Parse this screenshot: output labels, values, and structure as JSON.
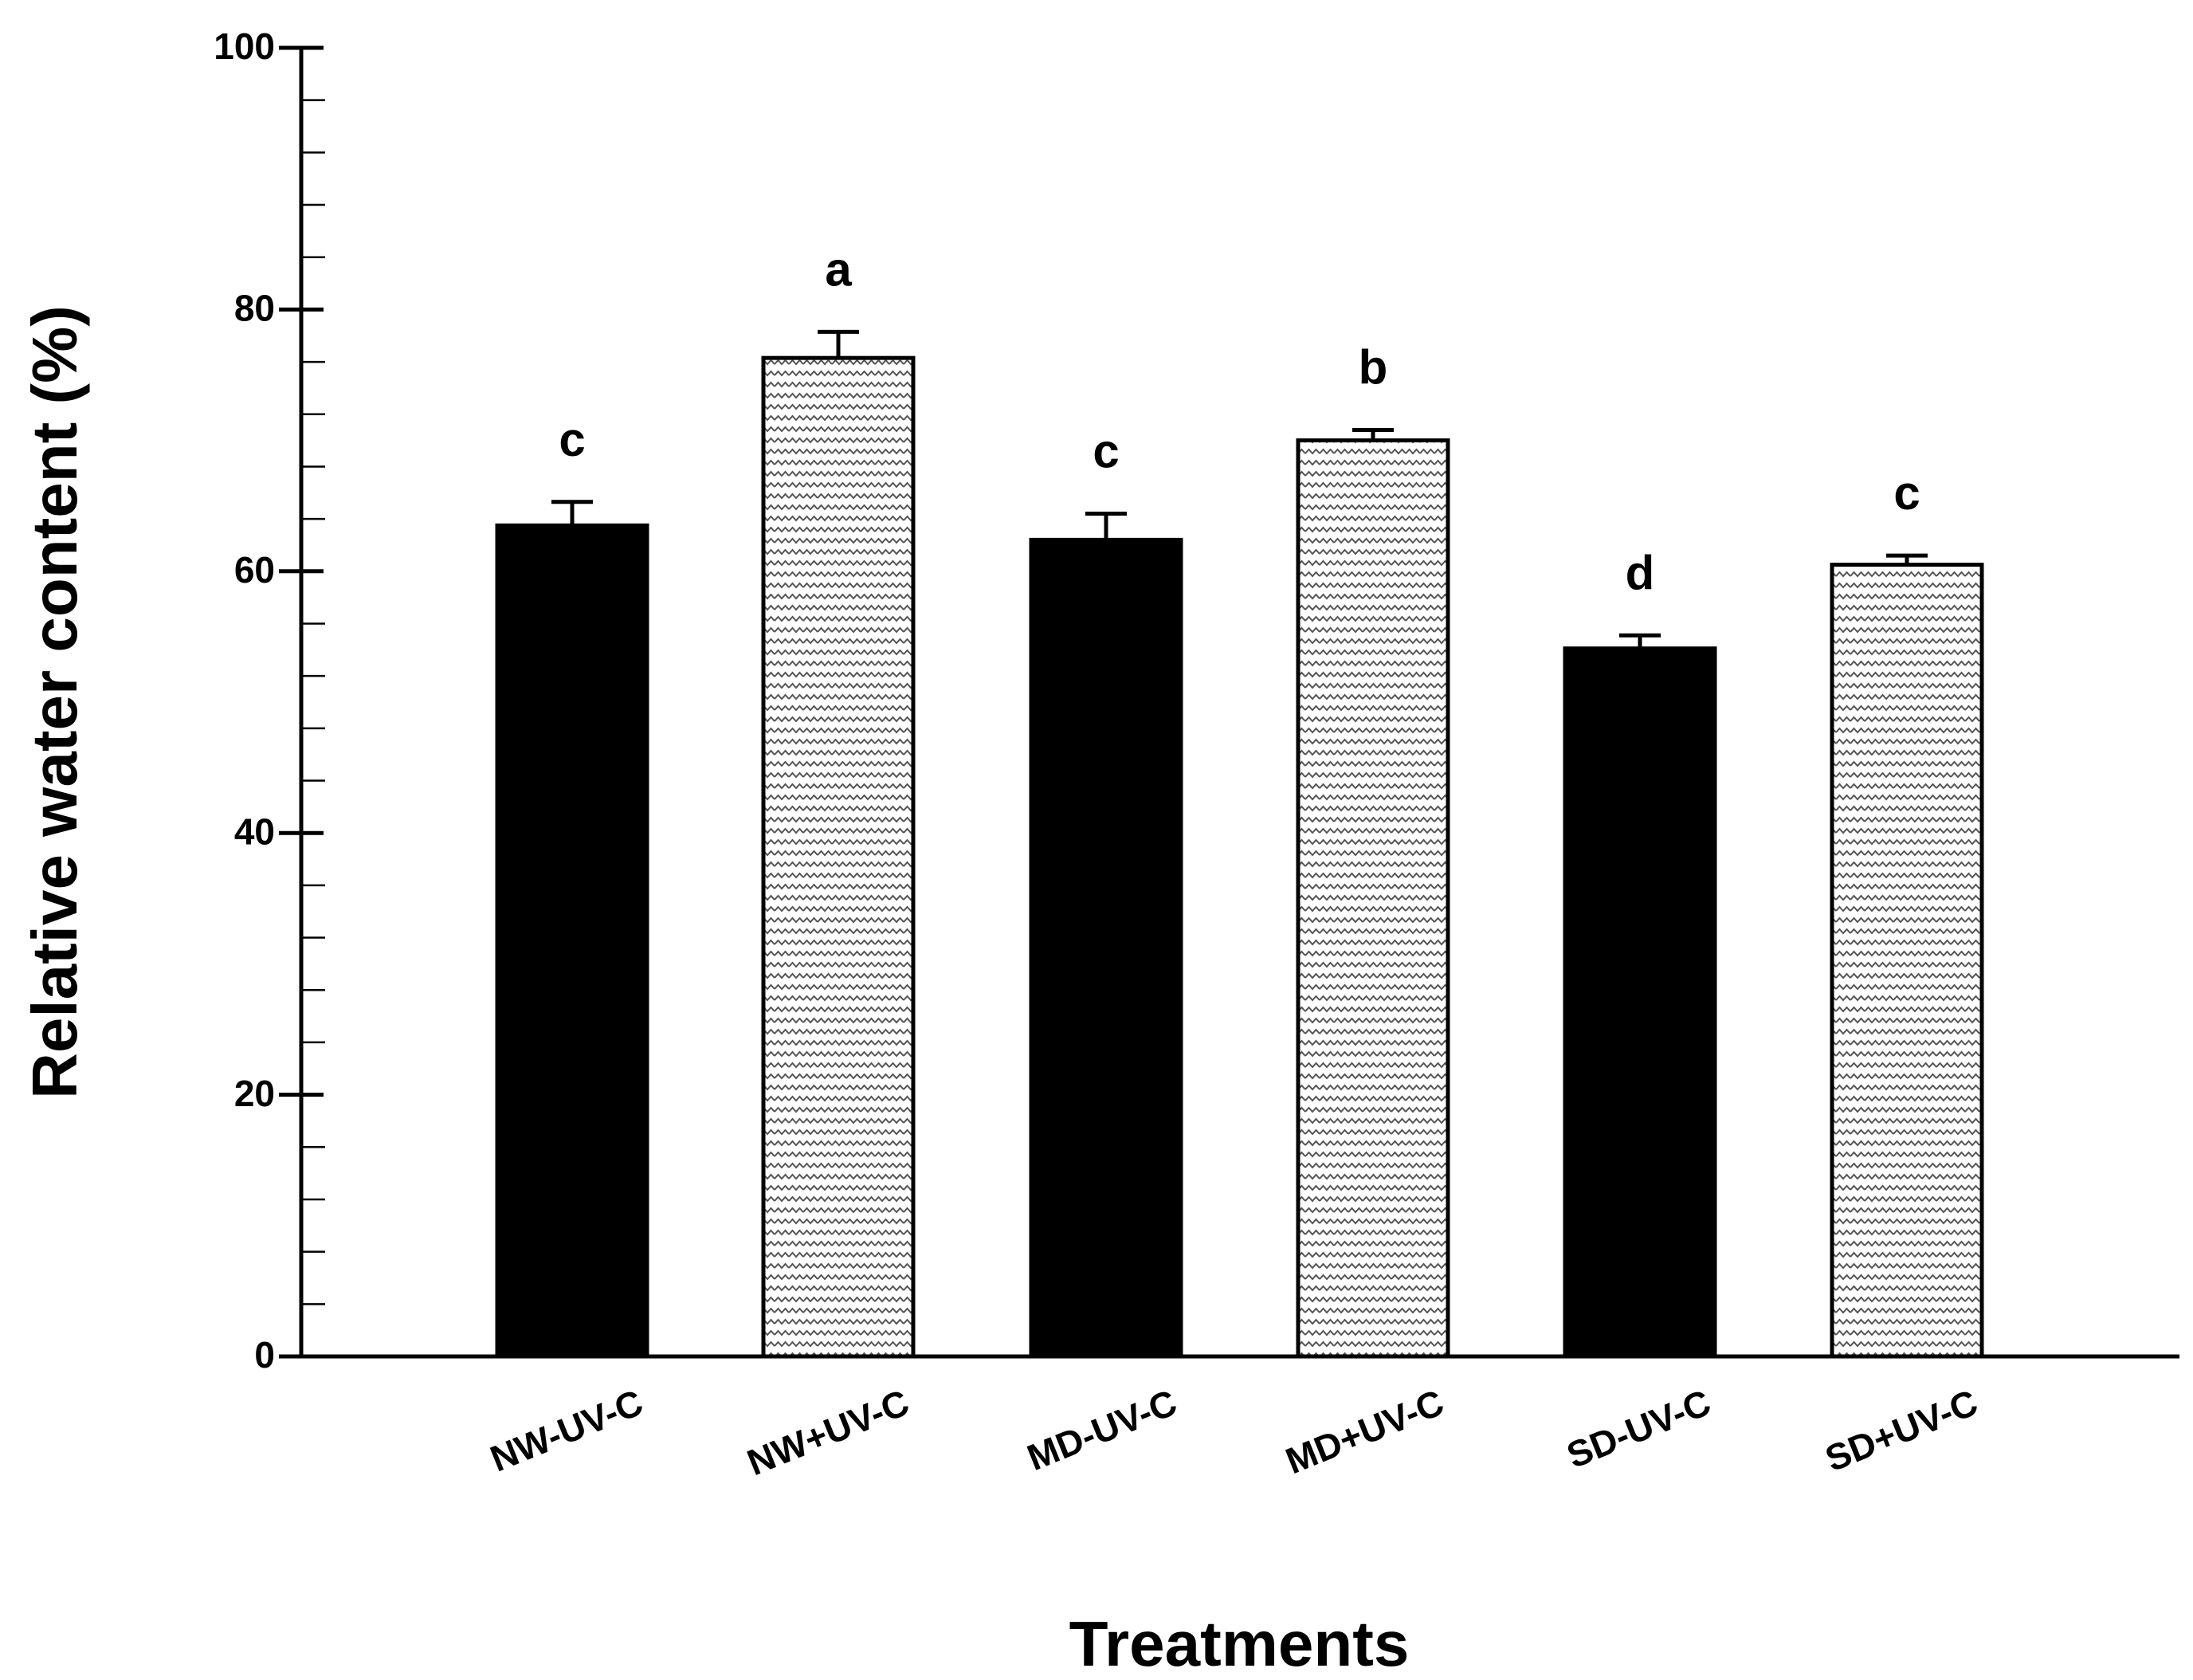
{
  "chart_data": {
    "type": "bar",
    "title": "",
    "xlabel": "Treatments",
    "ylabel": "Relative water content (%)",
    "ylim": [
      0,
      100
    ],
    "yticks": [
      0,
      20,
      40,
      60,
      80,
      100
    ],
    "yticks_minor_step": 4,
    "categories": [
      "NW-UV-C",
      "NW+UV-C",
      "MD-UV-C",
      "MD+UV-C",
      "SD-UV-C",
      "SD+UV-C"
    ],
    "values": [
      63.5,
      76.3,
      62.4,
      70.0,
      54.1,
      60.5
    ],
    "errors": [
      1.8,
      2.0,
      2.0,
      0.8,
      1.0,
      0.7
    ],
    "significance_letters": [
      "c",
      "a",
      "c",
      "b",
      "d",
      "c"
    ],
    "fills": [
      "solid",
      "pattern",
      "solid",
      "pattern",
      "solid",
      "pattern"
    ],
    "colors": {
      "solid": "#000000",
      "pattern_bg": "#ffffff",
      "pattern_stroke": "#555555",
      "axis": "#000000"
    }
  }
}
